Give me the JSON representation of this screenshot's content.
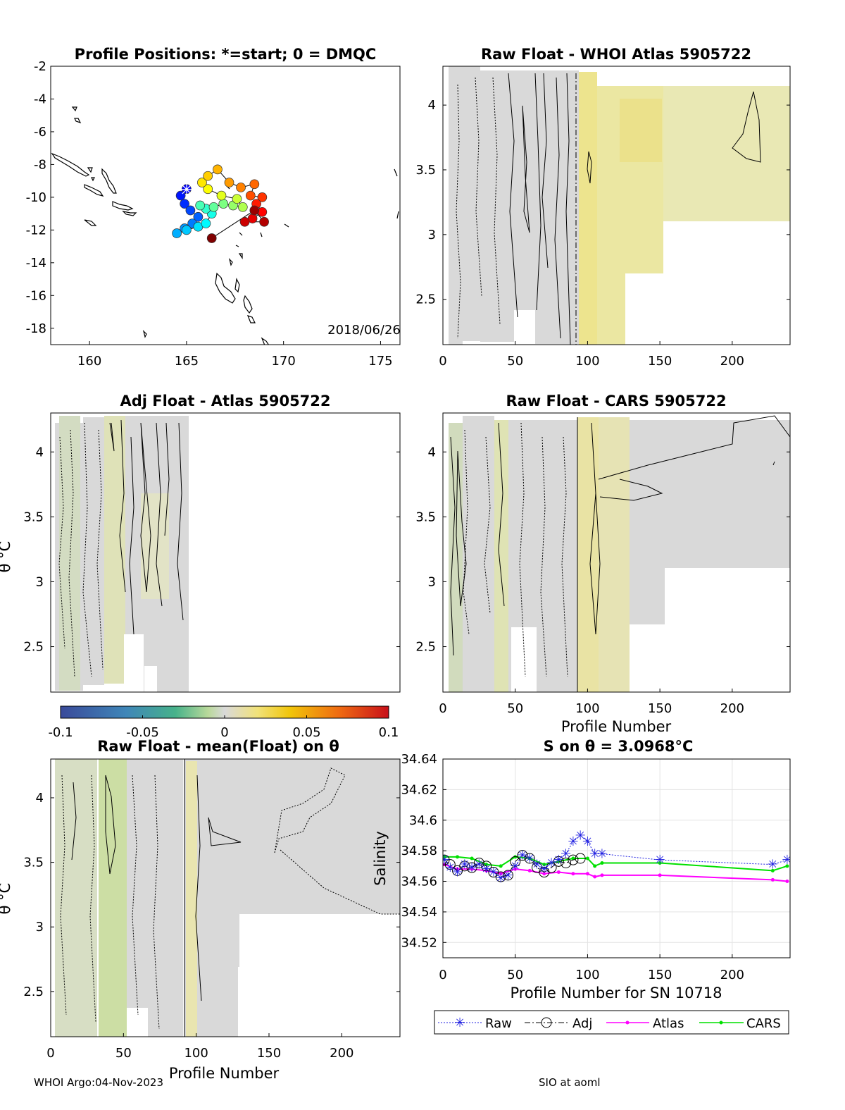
{
  "footer": {
    "left": "WHOI Argo:04-Nov-2023",
    "right": "SIO at aoml"
  },
  "panels": {
    "map": {
      "title": "Profile Positions: *=start; 0 = DMQC",
      "date": "2018/06/26",
      "xticks": [
        "160",
        "165",
        "170",
        "175"
      ],
      "yticks": [
        "-2",
        "-4",
        "-6",
        "-8",
        "-10",
        "-12",
        "-14",
        "-16",
        "-18"
      ]
    },
    "whoi": {
      "title": "Raw Float - WHOI Atlas  5905722",
      "xticks": [
        "0",
        "50",
        "100",
        "150",
        "200"
      ],
      "yticks": [
        "4",
        "3.5",
        "3",
        "2.5"
      ]
    },
    "adj": {
      "title": "Adj Float - Atlas  5905722",
      "ylabel": "θ °C",
      "yticks": [
        "4",
        "3.5",
        "3",
        "2.5"
      ]
    },
    "cars": {
      "title": "Raw Float - CARS  5905722",
      "xlabel": "Profile Number",
      "xticks": [
        "0",
        "50",
        "100",
        "150",
        "200"
      ],
      "yticks": [
        "4",
        "3.5",
        "3",
        "2.5"
      ]
    },
    "mean": {
      "title": "Raw Float - mean(Float) on θ",
      "xlabel": "Profile Number",
      "ylabel": "θ °C",
      "xticks": [
        "0",
        "50",
        "100",
        "150",
        "200"
      ],
      "yticks": [
        "4",
        "3.5",
        "3",
        "2.5"
      ]
    },
    "sal": {
      "title": "S on θ = 3.0968°C",
      "xlabel": "Profile Number for SN 10718",
      "ylabel": "Salinity",
      "xticks": [
        "0",
        "50",
        "100",
        "150",
        "200"
      ],
      "yticks": [
        "34.64",
        "34.62",
        "34.6",
        "34.58",
        "34.56",
        "34.54",
        "34.52"
      ]
    }
  },
  "colorbar": {
    "ticks": [
      "-0.1",
      "-0.05",
      "0",
      "0.05",
      "0.1"
    ]
  },
  "legend": {
    "raw": "Raw",
    "adj": "Adj",
    "atlas": "Atlas",
    "cars": "CARS"
  },
  "colors": {
    "raw": "#1f1fe0",
    "adj": "#000000",
    "atlas": "#ff00ff",
    "cars": "#00e000",
    "anomaly_neutral": "#d9d9d9",
    "anomaly_pos": "#efe68a",
    "anomaly_neg": "#c8dca8"
  },
  "chart_data": [
    {
      "type": "scatter",
      "name": "profile-positions",
      "title": "Profile Positions: *=start; 0 = DMQC",
      "xlim": [
        158,
        176
      ],
      "ylim": [
        -19,
        -2
      ],
      "points": [
        [
          165.0,
          -9.5
        ],
        [
          164.7,
          -9.9
        ],
        [
          164.9,
          -10.4
        ],
        [
          165.2,
          -10.8
        ],
        [
          165.6,
          -11.2
        ],
        [
          165.3,
          -11.6
        ],
        [
          164.9,
          -11.9
        ],
        [
          164.5,
          -12.2
        ],
        [
          165.0,
          -12.0
        ],
        [
          165.6,
          -11.8
        ],
        [
          166.0,
          -11.6
        ],
        [
          166.3,
          -11.0
        ],
        [
          166.0,
          -10.7
        ],
        [
          165.7,
          -10.5
        ],
        [
          166.4,
          -10.6
        ],
        [
          166.9,
          -10.4
        ],
        [
          167.4,
          -10.5
        ],
        [
          167.9,
          -10.6
        ],
        [
          167.6,
          -10.1
        ],
        [
          166.8,
          -9.9
        ],
        [
          166.1,
          -9.5
        ],
        [
          165.8,
          -9.1
        ],
        [
          166.1,
          -8.7
        ],
        [
          166.6,
          -8.3
        ],
        [
          167.2,
          -9.1
        ],
        [
          167.8,
          -9.4
        ],
        [
          168.5,
          -9.2
        ],
        [
          168.3,
          -9.9
        ],
        [
          168.9,
          -10.0
        ],
        [
          168.6,
          -10.4
        ],
        [
          168.9,
          -10.9
        ],
        [
          168.4,
          -11.3
        ],
        [
          168.0,
          -11.5
        ],
        [
          169.0,
          -11.5
        ],
        [
          168.5,
          -10.8
        ],
        [
          166.3,
          -12.5
        ]
      ]
    },
    {
      "type": "heatmap",
      "name": "raw-whoi-atlas",
      "title": "Raw Float - WHOI Atlas  5905722",
      "xlim": [
        0,
        240
      ],
      "ylim": [
        2.15,
        4.3
      ],
      "zlim": [
        -0.1,
        0.1
      ]
    },
    {
      "type": "heatmap",
      "name": "adj-atlas",
      "title": "Adj Float - Atlas  5905722",
      "xlim": [
        0,
        240
      ],
      "ylim": [
        2.15,
        4.3
      ],
      "zlim": [
        -0.1,
        0.1
      ]
    },
    {
      "type": "heatmap",
      "name": "raw-cars",
      "title": "Raw Float - CARS  5905722",
      "xlim": [
        0,
        240
      ],
      "ylim": [
        2.15,
        4.3
      ],
      "zlim": [
        -0.1,
        0.1
      ]
    },
    {
      "type": "heatmap",
      "name": "raw-mean",
      "title": "Raw Float - mean(Float) on θ",
      "xlim": [
        0,
        240
      ],
      "ylim": [
        2.15,
        4.3
      ],
      "zlim": [
        -0.1,
        0.1
      ]
    },
    {
      "type": "line",
      "name": "salinity-on-theta",
      "title": "S on θ = 3.0968°C",
      "xlabel": "Profile Number for SN 10718",
      "ylabel": "Salinity",
      "xlim": [
        0,
        240
      ],
      "ylim": [
        34.51,
        34.64
      ],
      "series": [
        {
          "name": "Raw",
          "x": [
            1,
            5,
            10,
            15,
            20,
            25,
            30,
            35,
            40,
            45,
            50,
            55,
            60,
            65,
            70,
            75,
            80,
            85,
            90,
            95,
            100,
            105,
            110,
            150,
            228,
            238
          ],
          "y": [
            34.574,
            34.569,
            34.566,
            34.571,
            34.569,
            34.571,
            34.568,
            34.566,
            34.562,
            34.564,
            34.57,
            34.577,
            34.575,
            34.571,
            34.568,
            34.572,
            34.574,
            34.578,
            34.586,
            34.59,
            34.586,
            34.578,
            34.578,
            34.574,
            34.571,
            34.574
          ]
        },
        {
          "name": "Adj",
          "x": [
            1,
            5,
            10,
            15,
            20,
            25,
            30,
            35,
            40,
            45,
            50,
            55,
            60,
            65,
            70,
            75,
            80,
            85,
            90,
            95
          ],
          "y": [
            34.574,
            34.571,
            34.567,
            34.57,
            34.569,
            34.572,
            34.57,
            34.566,
            34.563,
            34.564,
            34.573,
            34.577,
            34.575,
            34.569,
            34.566,
            34.569,
            34.573,
            34.572,
            34.574,
            34.575
          ]
        },
        {
          "name": "Atlas",
          "x": [
            1,
            10,
            20,
            30,
            40,
            50,
            60,
            70,
            80,
            90,
            100,
            105,
            110,
            150,
            228,
            238
          ],
          "y": [
            34.571,
            34.568,
            34.568,
            34.567,
            34.565,
            34.568,
            34.567,
            34.565,
            34.566,
            34.565,
            34.565,
            34.563,
            34.564,
            34.564,
            34.561,
            34.56
          ]
        },
        {
          "name": "CARS",
          "x": [
            1,
            10,
            20,
            30,
            40,
            50,
            60,
            70,
            80,
            90,
            100,
            105,
            110,
            150,
            228,
            238
          ],
          "y": [
            34.576,
            34.576,
            34.575,
            34.571,
            34.57,
            34.576,
            34.575,
            34.571,
            34.573,
            34.575,
            34.575,
            34.57,
            34.572,
            34.572,
            34.567,
            34.57
          ]
        }
      ]
    }
  ]
}
